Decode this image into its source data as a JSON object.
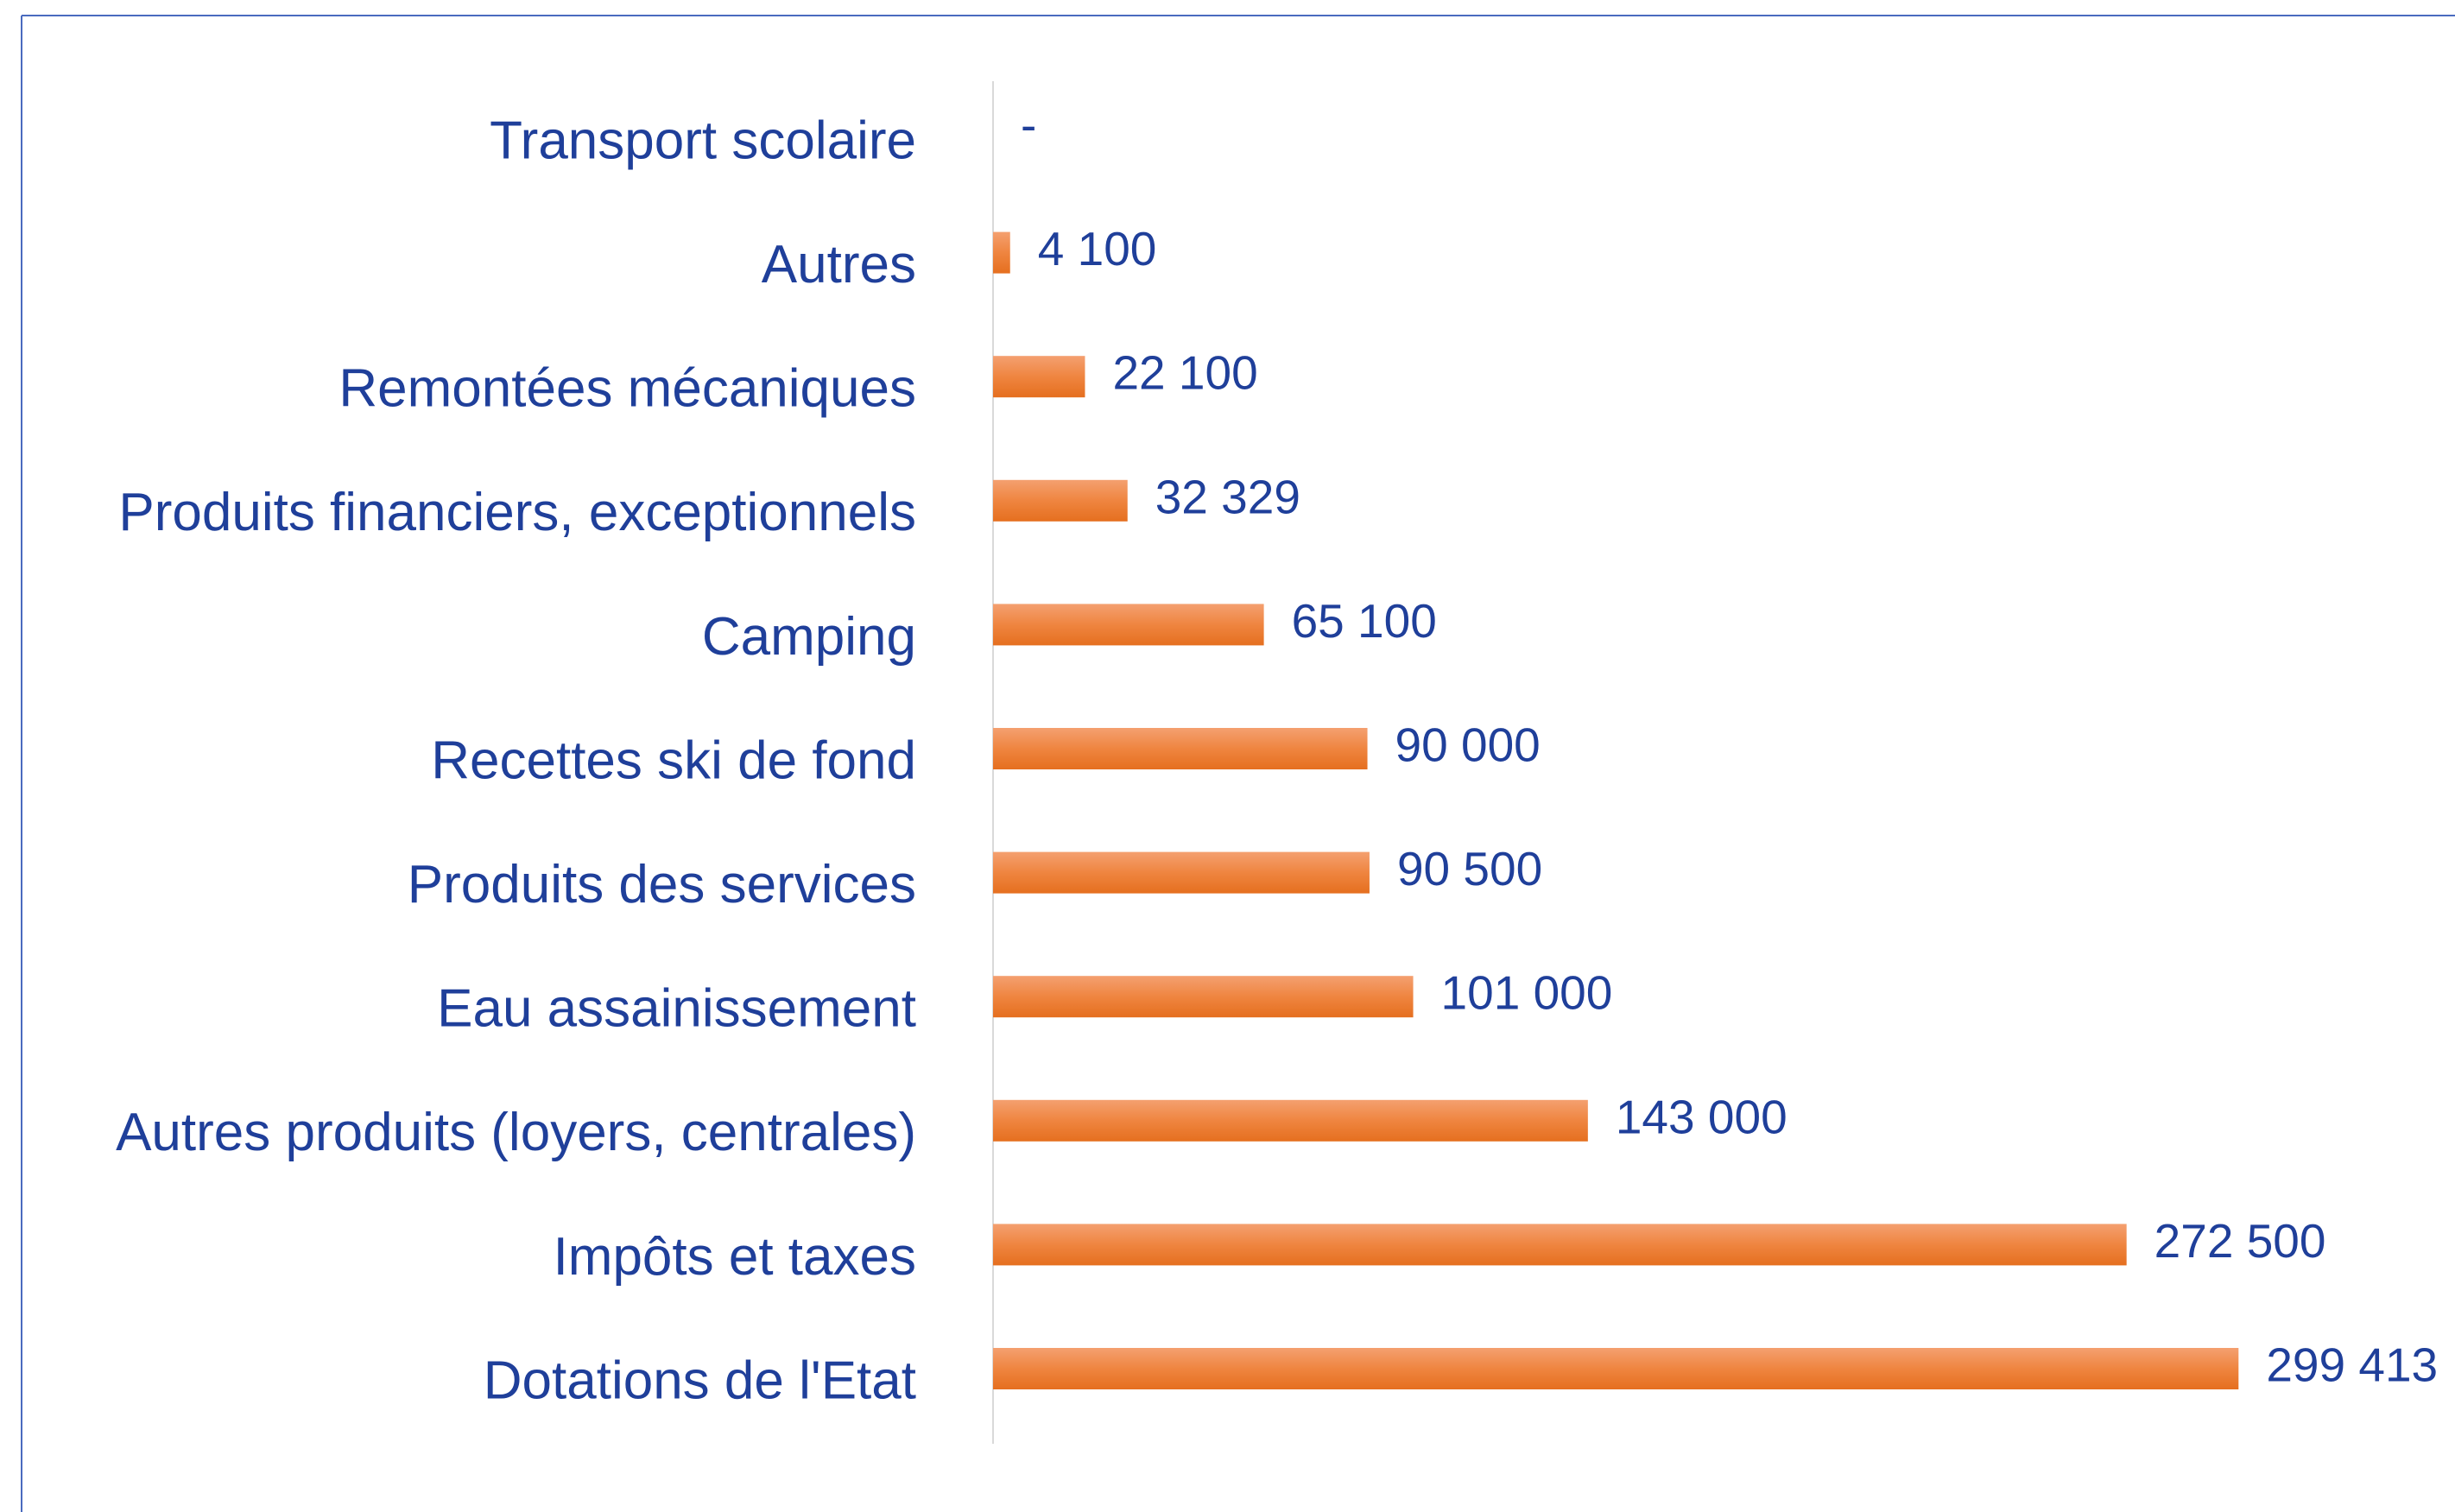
{
  "chart_data": {
    "type": "bar",
    "orientation": "horizontal",
    "categories": [
      "Transport scolaire",
      "Autres",
      "Remontées mécaniques",
      "Produits financiers, exceptionnels",
      "Camping",
      "Recettes ski de fond",
      "Produits des services",
      "Eau assainissement",
      "Autres produits (loyers, centrales)",
      "Impôts et taxes",
      "Dotations de l'Etat"
    ],
    "values": [
      0,
      4100,
      22100,
      32329,
      65100,
      90000,
      90500,
      101000,
      143000,
      272500,
      299413
    ],
    "value_labels": [
      "-",
      "4 100",
      "22 100",
      "32 329",
      "65 100",
      "90 000",
      "90 500",
      "101 000",
      "143 000",
      "272 500",
      "299 413"
    ],
    "color": "#ed7d31",
    "xlim": [
      0,
      350000
    ]
  }
}
